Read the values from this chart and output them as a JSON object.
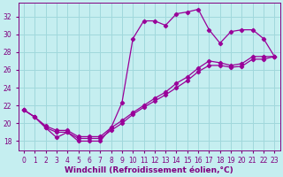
{
  "xlabel": "Windchill (Refroidissement éolien,°C)",
  "bg_color": "#c5eef0",
  "line_color": "#990099",
  "grid_color": "#a0d8dc",
  "xlim": [
    -0.5,
    23.5
  ],
  "ylim": [
    17.0,
    33.5
  ],
  "yticks": [
    18,
    20,
    22,
    24,
    26,
    28,
    30,
    32
  ],
  "xticks": [
    0,
    1,
    2,
    3,
    4,
    5,
    6,
    7,
    8,
    9,
    10,
    11,
    12,
    13,
    14,
    15,
    16,
    17,
    18,
    19,
    20,
    21,
    22,
    23
  ],
  "wavy_x": [
    0,
    1,
    2,
    3,
    4,
    5,
    6,
    7,
    8,
    9,
    10,
    11,
    12,
    13,
    14,
    15,
    16,
    17,
    18,
    19,
    20,
    21,
    22,
    23
  ],
  "wavy_y": [
    21.5,
    20.7,
    19.5,
    18.4,
    19.0,
    18.0,
    18.0,
    18.0,
    19.5,
    22.3,
    29.5,
    31.5,
    31.5,
    31.0,
    32.3,
    32.5,
    32.8,
    30.5,
    29.0,
    30.3,
    30.5,
    30.5,
    29.5,
    27.5
  ],
  "diag1_x": [
    0,
    1,
    2,
    3,
    4,
    5,
    6,
    7,
    8,
    9,
    10,
    11,
    12,
    13,
    14,
    15,
    16,
    17,
    18,
    19,
    20,
    21,
    22,
    23
  ],
  "diag1_y": [
    21.5,
    20.7,
    19.7,
    19.2,
    19.2,
    18.5,
    18.5,
    18.5,
    19.5,
    20.3,
    21.2,
    22.0,
    22.8,
    23.5,
    24.5,
    25.2,
    26.2,
    27.0,
    26.8,
    26.5,
    26.7,
    27.5,
    27.5,
    27.5
  ],
  "diag2_x": [
    0,
    1,
    2,
    3,
    4,
    5,
    6,
    7,
    8,
    9,
    10,
    11,
    12,
    13,
    14,
    15,
    16,
    17,
    18,
    19,
    20,
    21,
    22,
    23
  ],
  "diag2_y": [
    21.5,
    20.7,
    19.5,
    19.0,
    19.0,
    18.3,
    18.3,
    18.3,
    19.2,
    20.0,
    21.0,
    21.8,
    22.5,
    23.2,
    24.0,
    24.8,
    25.8,
    26.5,
    26.5,
    26.3,
    26.4,
    27.2,
    27.2,
    27.5
  ],
  "font_color": "#800080",
  "tick_fontsize": 5.5,
  "label_fontsize": 6.5
}
